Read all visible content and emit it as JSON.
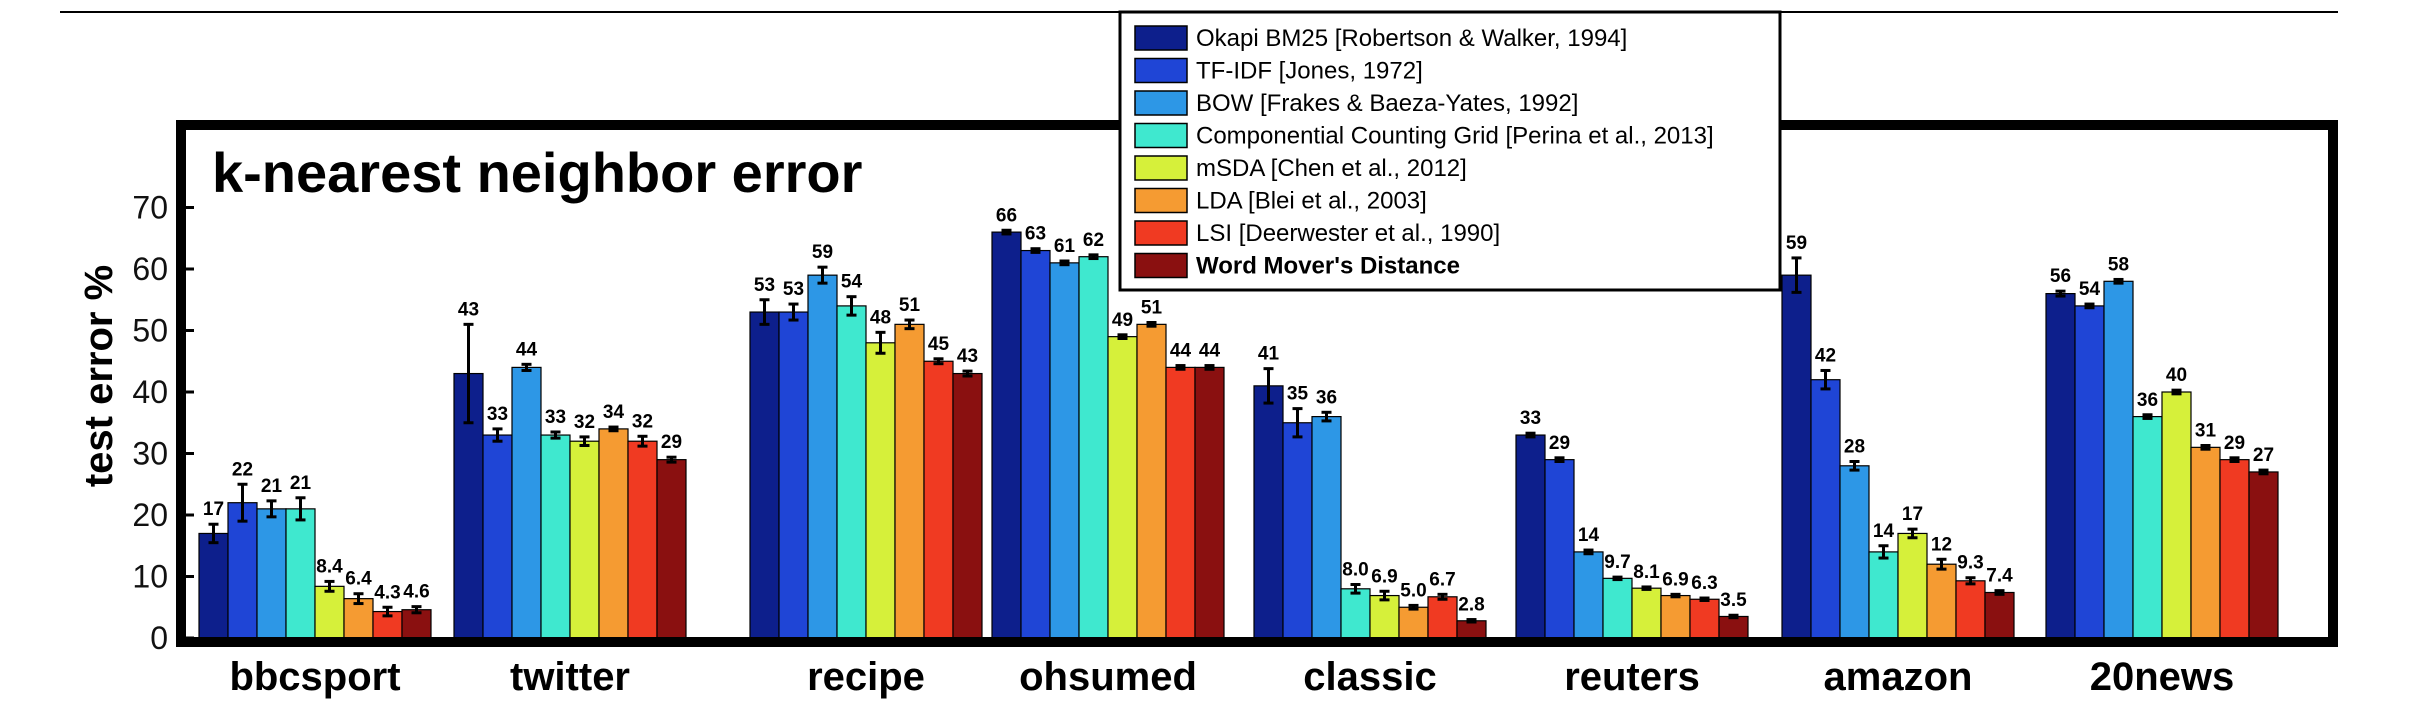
{
  "chart_data": {
    "type": "bar",
    "title": "k-nearest neighbor error",
    "ylabel": "test error %",
    "xlabel": "",
    "ylim": [
      0,
      80
    ],
    "yticks": [
      0,
      10,
      20,
      30,
      40,
      50,
      60,
      70
    ],
    "grid": false,
    "legend_position": "top-center",
    "categories": [
      "bbcsport",
      "twitter",
      "recipe",
      "ohsumed",
      "classic",
      "reuters",
      "amazon",
      "20news"
    ],
    "series": [
      {
        "name": "Okapi BM25 [Robertson & Walker, 1994]",
        "color": "#0d1f8c",
        "bold": false,
        "values": [
          17,
          43,
          53,
          66,
          41,
          33,
          59,
          56
        ],
        "labels": [
          "17",
          "43",
          "53",
          "66",
          "41",
          "33",
          "59",
          "56"
        ],
        "errors": [
          1.5,
          8,
          2,
          0.3,
          2.8,
          0.3,
          2.8,
          0.4
        ]
      },
      {
        "name": "TF-IDF [Jones, 1972]",
        "color": "#1f45d6",
        "bold": false,
        "values": [
          22,
          33,
          53,
          63,
          35,
          29,
          42,
          54
        ],
        "labels": [
          "22",
          "33",
          "53",
          "63",
          "35",
          "29",
          "42",
          "54"
        ],
        "errors": [
          3,
          1,
          1.3,
          0.3,
          2.3,
          0.3,
          1.5,
          0.3
        ]
      },
      {
        "name": "BOW [Frakes & Baeza-Yates, 1992]",
        "color": "#2d97e6",
        "bold": false,
        "values": [
          21,
          44,
          59,
          61,
          36,
          14,
          28,
          58
        ],
        "labels": [
          "21",
          "44",
          "59",
          "61",
          "36",
          "14",
          "28",
          "58"
        ],
        "errors": [
          1.3,
          0.5,
          1.3,
          0.3,
          0.7,
          0.3,
          0.7,
          0.3
        ]
      },
      {
        "name": "Componential Counting Grid [Perina et al., 2013]",
        "color": "#3fe8cf",
        "bold": false,
        "values": [
          21,
          33,
          54,
          62,
          8.0,
          9.7,
          14,
          36
        ],
        "labels": [
          "21",
          "33",
          "54",
          "62",
          "8.0",
          "9.7",
          "14",
          "36"
        ],
        "errors": [
          1.8,
          0.5,
          1.5,
          0.3,
          0.7,
          0.2,
          1,
          0.3
        ]
      },
      {
        "name": "mSDA [Chen et al., 2012]",
        "color": "#d6f03a",
        "bold": false,
        "values": [
          8.4,
          32,
          48,
          49,
          6.9,
          8.1,
          17,
          40
        ],
        "labels": [
          "8.4",
          "32",
          "48",
          "49",
          "6.9",
          "8.1",
          "17",
          "40"
        ],
        "errors": [
          0.8,
          0.7,
          1.7,
          0.3,
          0.7,
          0.2,
          0.7,
          0.3
        ]
      },
      {
        "name": "LDA [Blei et al., 2003]",
        "color": "#f59b32",
        "bold": false,
        "values": [
          6.4,
          34,
          51,
          51,
          5.0,
          6.9,
          12,
          31
        ],
        "labels": [
          "6.4",
          "34",
          "51",
          "51",
          "5.0",
          "6.9",
          "12",
          "31"
        ],
        "errors": [
          0.8,
          0.3,
          0.7,
          0.3,
          0.3,
          0.2,
          0.8,
          0.3
        ]
      },
      {
        "name": "LSI [Deerwester et al., 1990]",
        "color": "#f03a22",
        "bold": false,
        "values": [
          4.3,
          32,
          45,
          44,
          6.7,
          6.3,
          9.3,
          29
        ],
        "labels": [
          "4.3",
          "32",
          "45",
          "44",
          "6.7",
          "6.3",
          "9.3",
          "29"
        ],
        "errors": [
          0.7,
          0.8,
          0.4,
          0.3,
          0.4,
          0.2,
          0.5,
          0.3
        ]
      },
      {
        "name": "Word Mover's Distance",
        "color": "#8a1010",
        "bold": true,
        "values": [
          4.6,
          29,
          43,
          44,
          2.8,
          3.5,
          7.4,
          27
        ],
        "labels": [
          "4.6",
          "29",
          "43",
          "44",
          "2.8",
          "3.5",
          "7.4",
          "27"
        ],
        "errors": [
          0.5,
          0.4,
          0.4,
          0.3,
          0.2,
          0.2,
          0.3,
          0.3
        ]
      }
    ]
  }
}
